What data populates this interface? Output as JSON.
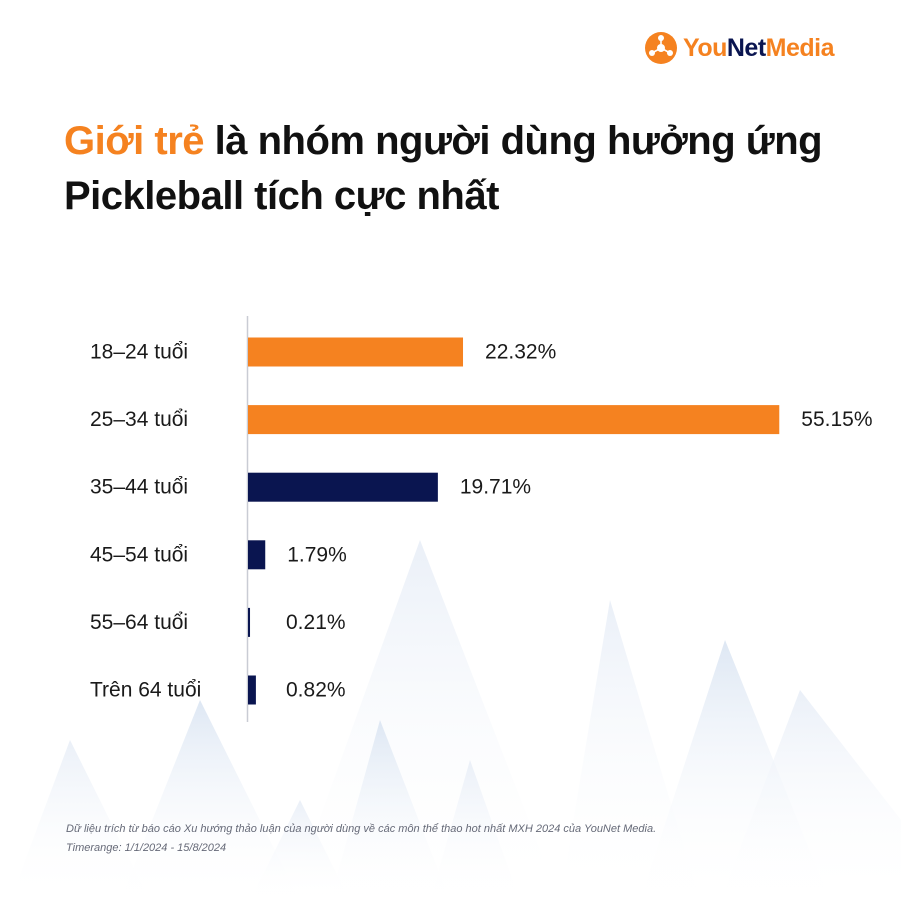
{
  "brand": {
    "logo_part1": "YouNet",
    "logo_part2": "Media",
    "colors": {
      "orange": "#F58220",
      "navy": "#0A1550"
    }
  },
  "headline": {
    "highlight": "Giới trẻ",
    "rest": " là nhóm người dùng hưởng ứng Pickleball tích cực nhất"
  },
  "chart_data": {
    "type": "bar",
    "orientation": "horizontal",
    "categories": [
      "18–24 tuổi",
      "25–34 tuổi",
      "35–44 tuổi",
      "45–54 tuổi",
      "55–64 tuổi",
      "Trên 64 tuổi"
    ],
    "values": [
      22.32,
      55.15,
      19.71,
      1.79,
      0.21,
      0.82
    ],
    "value_labels": [
      "22.32%",
      "55.15%",
      "19.71%",
      "1.79%",
      "0.21%",
      "0.82%"
    ],
    "unit": "%",
    "bar_colors": [
      "#F58220",
      "#F58220",
      "#0A1550",
      "#0A1550",
      "#0A1550",
      "#0A1550"
    ],
    "xlim": [
      0,
      60
    ],
    "grid": false,
    "legend": "none"
  },
  "footnote": {
    "line1": "Dữ liệu trích từ báo cáo Xu hướng thảo luận của người dùng về các môn thể thao hot nhất MXH 2024 của YouNet Media.",
    "line2": "Timerange: 1/1/2024 - 15/8/2024"
  }
}
